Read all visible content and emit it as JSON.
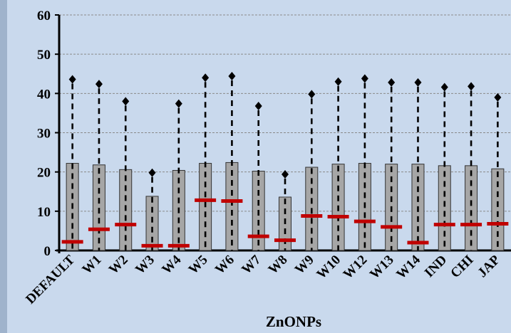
{
  "chart_data": {
    "type": "box",
    "xlabel": "ZnONPs",
    "ylabel": "",
    "ylim": [
      0,
      60
    ],
    "yticks": [
      0,
      10,
      20,
      30,
      40,
      50,
      60
    ],
    "grid": true,
    "colors": {
      "plot_background": "#c9d9ed",
      "box_fill": "#a6a6a6",
      "median_line": "#c00000",
      "whisker": "#000000",
      "gridline": "#8a8a8a"
    },
    "categories": [
      "DEFAULT",
      "W1",
      "W2",
      "W3",
      "W4",
      "W5",
      "W6",
      "W7",
      "W8",
      "W9",
      "W10",
      "W12",
      "W13",
      "W14",
      "IND",
      "CHI",
      "JAP"
    ],
    "series": [
      {
        "box_low": [
          0,
          0,
          0,
          0,
          0,
          0,
          0,
          0,
          0,
          0,
          0,
          0,
          0,
          0,
          0,
          0,
          0
        ],
        "box_high": [
          22.2,
          21.8,
          20.6,
          13.8,
          20.4,
          22.2,
          22.4,
          20.2,
          13.6,
          21.2,
          22.0,
          22.2,
          22.0,
          22.0,
          21.6,
          21.6,
          20.8
        ],
        "median": [
          2.2,
          5.4,
          6.6,
          1.2,
          1.2,
          12.8,
          12.6,
          3.6,
          2.6,
          8.8,
          8.6,
          7.4,
          6.0,
          2.0,
          6.6,
          6.6,
          6.8
        ],
        "whisker_high": [
          43.6,
          42.4,
          38.0,
          19.8,
          37.4,
          44.0,
          44.4,
          36.8,
          19.4,
          39.8,
          43.0,
          43.8,
          42.8,
          42.8,
          41.6,
          41.8,
          39.0
        ]
      }
    ]
  }
}
